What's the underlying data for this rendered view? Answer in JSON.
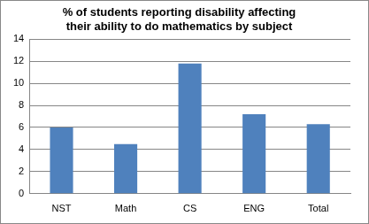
{
  "chart_data": {
    "type": "bar",
    "title": "% of students reporting disability affecting their ability to do mathematics by subject",
    "categories": [
      "NST",
      "Math",
      "CS",
      "ENG",
      "Total"
    ],
    "values": [
      6.0,
      4.5,
      11.8,
      7.2,
      6.3
    ],
    "color": "#4f81bd",
    "ylim": [
      0,
      14
    ],
    "yticks": [
      0,
      2,
      4,
      6,
      8,
      10,
      12,
      14
    ],
    "grid": true
  }
}
